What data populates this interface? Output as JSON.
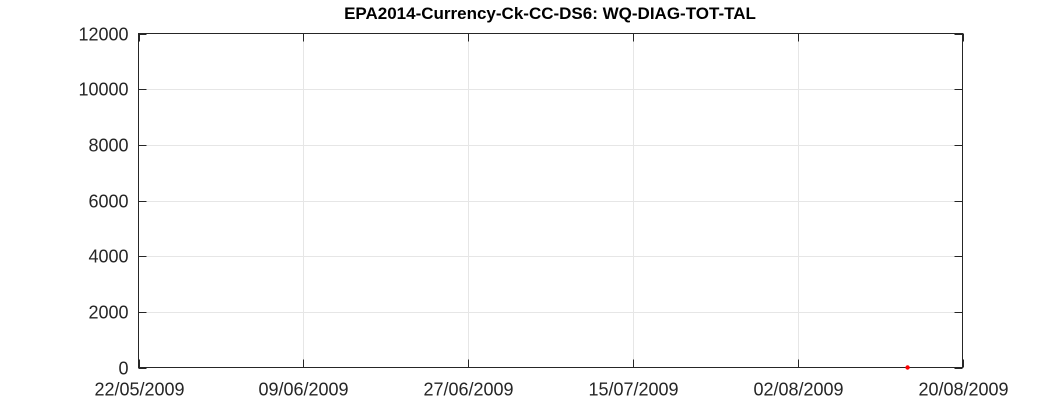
{
  "chart_data": {
    "type": "scatter",
    "title": "EPA2014-Currency-Ck-CC-DS6: WQ-DIAG-TOT-TAL",
    "xlabel": "",
    "ylabel": "",
    "x_axis_type": "date",
    "xlim": [
      "22/05/2009",
      "20/08/2009"
    ],
    "ylim": [
      0,
      12000
    ],
    "x_ticks": [
      "22/05/2009",
      "09/06/2009",
      "27/06/2009",
      "15/07/2009",
      "02/08/2009",
      "20/08/2009"
    ],
    "y_ticks": [
      0,
      2000,
      4000,
      6000,
      8000,
      10000,
      12000
    ],
    "grid": true,
    "legend": "none",
    "series": [
      {
        "color": "#ff0000",
        "marker": "dot",
        "points": [
          {
            "x": "14/08/2009",
            "y": 0
          }
        ]
      }
    ]
  }
}
